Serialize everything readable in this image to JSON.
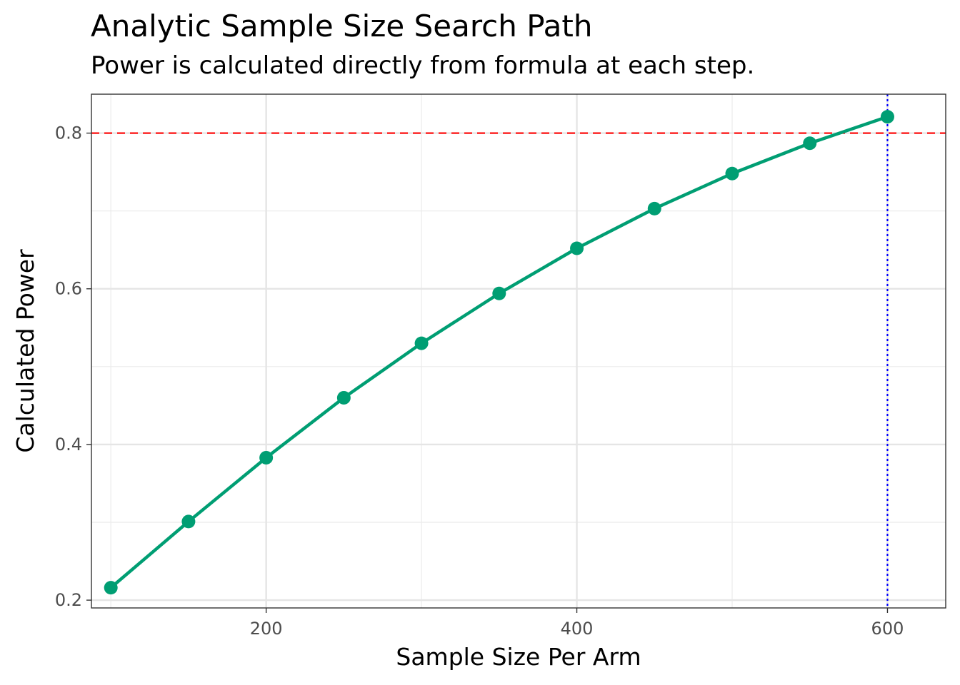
{
  "chart_data": {
    "type": "line",
    "title": "Analytic Sample Size Search Path",
    "subtitle": "Power is calculated directly from formula at each step.",
    "xlabel": "Sample Size Per Arm",
    "ylabel": "Calculated Power",
    "xlim": [
      87.5,
      637.5
    ],
    "ylim": [
      0.19,
      0.85
    ],
    "x_ticks": [
      200,
      400,
      600
    ],
    "x_minor_ticks": [
      100,
      300,
      500
    ],
    "y_ticks": [
      0.2,
      0.4,
      0.6,
      0.8
    ],
    "y_minor_ticks": [
      0.3,
      0.5,
      0.7
    ],
    "x_tick_labels": [
      "200",
      "400",
      "600"
    ],
    "y_tick_labels": [
      "0.2",
      "0.4",
      "0.6",
      "0.8"
    ],
    "series": [
      {
        "color": "#009E73",
        "x": [
          100,
          150,
          200,
          250,
          300,
          350,
          400,
          450,
          500,
          550,
          600
        ],
        "y": [
          0.216,
          0.301,
          0.383,
          0.46,
          0.53,
          0.594,
          0.652,
          0.703,
          0.748,
          0.787,
          0.821
        ]
      }
    ],
    "reference_lines": [
      {
        "orientation": "horizontal",
        "value": 0.8,
        "color": "#FF0000",
        "style": "dashed"
      },
      {
        "orientation": "vertical",
        "value": 600,
        "color": "#0000FF",
        "style": "dotted"
      }
    ],
    "grid": true,
    "legend": "none"
  }
}
